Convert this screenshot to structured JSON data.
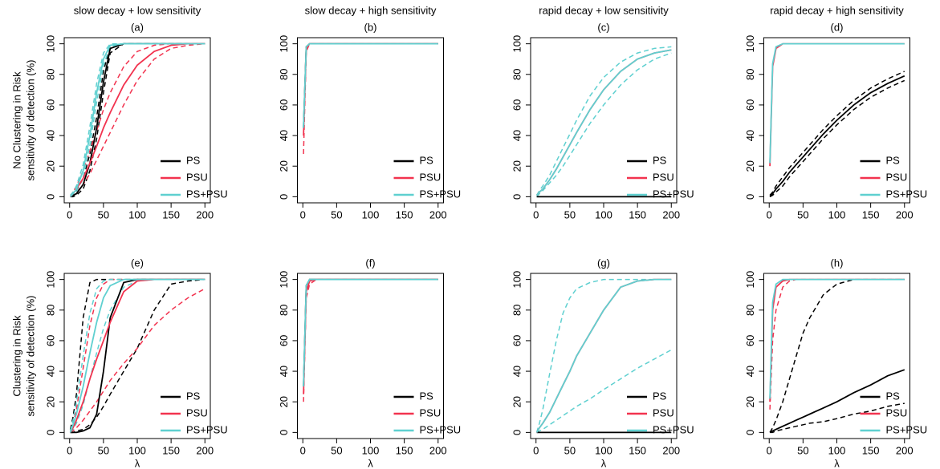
{
  "chart_data": [
    {
      "type": "line",
      "title": "slow decay + low sensitivity",
      "subtitle": "(a)",
      "ylabel": [
        "No Clustering in Risk",
        "sensitivity of detection (%)"
      ],
      "x": [
        1,
        5,
        10,
        20,
        30,
        40,
        50,
        60,
        80,
        100,
        125,
        150,
        175,
        200
      ],
      "xlim": [
        -8,
        208
      ],
      "ylim": [
        -4,
        104
      ],
      "xticks": [
        0,
        50,
        100,
        150,
        200
      ],
      "yticks": [
        0,
        20,
        40,
        60,
        80,
        100
      ],
      "legend": "bottomright",
      "series": [
        {
          "name": "PS",
          "color": "#000000",
          "values": [
            0,
            1,
            2,
            8,
            22,
            45,
            75,
            97,
            100,
            100,
            100,
            100,
            100,
            100
          ],
          "lower": [
            0,
            0,
            1,
            5,
            17,
            38,
            68,
            94,
            100,
            100,
            100,
            100,
            100,
            100
          ],
          "upper": [
            0,
            2,
            4,
            12,
            28,
            52,
            82,
            99,
            100,
            100,
            100,
            100,
            100,
            100
          ]
        },
        {
          "name": "PSU",
          "color": "#f2334f",
          "values": [
            0,
            2,
            5,
            12,
            22,
            33,
            45,
            55,
            73,
            86,
            95,
            99,
            100,
            100
          ],
          "lower": [
            0,
            1,
            3,
            8,
            15,
            24,
            33,
            42,
            60,
            76,
            90,
            97,
            99,
            100
          ],
          "upper": [
            0,
            3,
            7,
            17,
            30,
            43,
            57,
            68,
            85,
            95,
            99,
            100,
            100,
            100
          ]
        },
        {
          "name": "PS+PSU",
          "color": "#5fd0d0",
          "values": [
            0,
            2,
            5,
            17,
            40,
            68,
            90,
            99,
            100,
            100,
            100,
            100,
            100,
            100
          ],
          "lower": [
            0,
            1,
            3,
            13,
            34,
            62,
            86,
            98,
            100,
            100,
            100,
            100,
            100,
            100
          ],
          "upper": [
            1,
            3,
            7,
            21,
            46,
            74,
            94,
            100,
            100,
            100,
            100,
            100,
            100,
            100
          ]
        }
      ]
    },
    {
      "type": "line",
      "title": "slow decay + high sensitivity",
      "subtitle": "(b)",
      "x": [
        1,
        5,
        10,
        20,
        30,
        40,
        50,
        60,
        80,
        100,
        125,
        150,
        175,
        200
      ],
      "xlim": [
        -8,
        208
      ],
      "ylim": [
        -4,
        104
      ],
      "xticks": [
        0,
        50,
        100,
        150,
        200
      ],
      "yticks": [
        0,
        20,
        40,
        60,
        80,
        100
      ],
      "legend": "bottomright",
      "series": [
        {
          "name": "PS",
          "color": "#000000",
          "values": [
            45,
            98,
            100,
            100,
            100,
            100,
            100,
            100,
            100,
            100,
            100,
            100,
            100,
            100
          ]
        },
        {
          "name": "PSU",
          "color": "#f2334f",
          "values": [
            40,
            97,
            100,
            100,
            100,
            100,
            100,
            100,
            100,
            100,
            100,
            100,
            100,
            100
          ],
          "lower": [
            28,
            95,
            100,
            100,
            100,
            100,
            100,
            100,
            100,
            100,
            100,
            100,
            100,
            100
          ]
        },
        {
          "name": "PS+PSU",
          "color": "#5fd0d0",
          "values": [
            45,
            98,
            100,
            100,
            100,
            100,
            100,
            100,
            100,
            100,
            100,
            100,
            100,
            100
          ]
        }
      ]
    },
    {
      "type": "line",
      "title": "rapid decay + low sensitivity",
      "subtitle": "(c)",
      "x": [
        1,
        5,
        10,
        20,
        30,
        40,
        50,
        60,
        80,
        100,
        125,
        150,
        175,
        200
      ],
      "xlim": [
        -8,
        208
      ],
      "ylim": [
        -4,
        104
      ],
      "xticks": [
        0,
        50,
        100,
        150,
        200
      ],
      "yticks": [
        0,
        20,
        40,
        60,
        80,
        100
      ],
      "legend": "bottomright",
      "series": [
        {
          "name": "PS",
          "color": "#000000",
          "values": [
            0,
            0,
            0,
            0,
            0,
            0,
            0,
            0,
            0,
            0,
            0,
            0,
            0,
            0
          ]
        },
        {
          "name": "PSU",
          "color": "#f2334f",
          "values": [
            1,
            3,
            5,
            11,
            18,
            26,
            34,
            42,
            57,
            70,
            82,
            90,
            94,
            96
          ]
        },
        {
          "name": "PS+PSU",
          "color": "#5fd0d0",
          "values": [
            1,
            3,
            5,
            11,
            18,
            26,
            34,
            42,
            57,
            70,
            82,
            90,
            94,
            96
          ],
          "lower": [
            0,
            2,
            4,
            9,
            14,
            20,
            27,
            34,
            48,
            60,
            73,
            83,
            90,
            94
          ],
          "upper": [
            1,
            4,
            7,
            14,
            23,
            32,
            41,
            50,
            66,
            78,
            88,
            94,
            97,
            98
          ]
        }
      ]
    },
    {
      "type": "line",
      "title": "rapid decay + high sensitivity",
      "subtitle": "(d)",
      "x": [
        1,
        5,
        10,
        20,
        30,
        40,
        50,
        60,
        80,
        100,
        125,
        150,
        175,
        200
      ],
      "xlim": [
        -8,
        208
      ],
      "ylim": [
        -4,
        104
      ],
      "xticks": [
        0,
        50,
        100,
        150,
        200
      ],
      "yticks": [
        0,
        20,
        40,
        60,
        80,
        100
      ],
      "legend": "bottomright",
      "series": [
        {
          "name": "PS",
          "color": "#000000",
          "values": [
            0,
            2,
            5,
            10,
            16,
            21,
            26,
            31,
            41,
            50,
            60,
            68,
            74,
            79
          ],
          "lower": [
            0,
            1,
            3,
            7,
            13,
            18,
            23,
            28,
            38,
            47,
            57,
            65,
            71,
            76
          ],
          "upper": [
            1,
            3,
            7,
            13,
            19,
            24,
            29,
            34,
            44,
            53,
            63,
            71,
            77,
            82
          ]
        },
        {
          "name": "PSU",
          "color": "#f2334f",
          "values": [
            20,
            85,
            97,
            100,
            100,
            100,
            100,
            100,
            100,
            100,
            100,
            100,
            100,
            100
          ]
        },
        {
          "name": "PS+PSU",
          "color": "#5fd0d0",
          "values": [
            22,
            87,
            98,
            100,
            100,
            100,
            100,
            100,
            100,
            100,
            100,
            100,
            100,
            100
          ]
        }
      ]
    },
    {
      "type": "line",
      "subtitle": "(e)",
      "ylabel": [
        "Clustering in Risk",
        "sensitivity of detection (%)"
      ],
      "xlabel": "λ",
      "x": [
        1,
        5,
        10,
        20,
        30,
        40,
        50,
        60,
        80,
        100,
        125,
        150,
        175,
        200
      ],
      "xlim": [
        -8,
        208
      ],
      "ylim": [
        -4,
        104
      ],
      "xticks": [
        0,
        50,
        100,
        150,
        200
      ],
      "yticks": [
        0,
        20,
        40,
        60,
        80,
        100
      ],
      "legend": "bottomright",
      "series": [
        {
          "name": "PS",
          "color": "#000000",
          "values": [
            0,
            0,
            0,
            1,
            3,
            12,
            40,
            75,
            98,
            100,
            100,
            100,
            100,
            100
          ],
          "lower": [
            0,
            0,
            1,
            2,
            5,
            10,
            17,
            25,
            40,
            55,
            80,
            97,
            99,
            100
          ],
          "upper": [
            2,
            10,
            25,
            75,
            98,
            100,
            100,
            100,
            100,
            100,
            100,
            100,
            100,
            100
          ]
        },
        {
          "name": "PSU",
          "color": "#f2334f",
          "values": [
            0,
            3,
            8,
            20,
            35,
            48,
            60,
            72,
            92,
            99,
            100,
            100,
            100,
            100
          ],
          "lower": [
            0,
            1,
            3,
            8,
            14,
            20,
            27,
            34,
            45,
            55,
            70,
            80,
            88,
            94
          ],
          "upper": [
            0,
            5,
            15,
            42,
            70,
            88,
            97,
            100,
            100,
            100,
            100,
            100,
            100,
            100
          ]
        },
        {
          "name": "PS+PSU",
          "color": "#5fd0d0",
          "values": [
            0,
            5,
            12,
            30,
            52,
            72,
            88,
            96,
            100,
            100,
            100,
            100,
            100,
            100
          ],
          "lower": [
            0,
            2,
            6,
            18,
            35,
            52,
            68,
            80,
            95,
            99,
            100,
            100,
            100,
            100
          ],
          "upper": [
            1,
            8,
            20,
            50,
            78,
            94,
            99,
            100,
            100,
            100,
            100,
            100,
            100,
            100
          ]
        }
      ]
    },
    {
      "type": "line",
      "subtitle": "(f)",
      "xlabel": "λ",
      "x": [
        1,
        5,
        10,
        20,
        30,
        40,
        50,
        60,
        80,
        100,
        125,
        150,
        175,
        200
      ],
      "xlim": [
        -8,
        208
      ],
      "ylim": [
        -4,
        104
      ],
      "xticks": [
        0,
        50,
        100,
        150,
        200
      ],
      "yticks": [
        0,
        20,
        40,
        60,
        80,
        100
      ],
      "legend": "bottomright",
      "series": [
        {
          "name": "PS",
          "color": "#000000",
          "values": [
            30,
            96,
            100,
            100,
            100,
            100,
            100,
            100,
            100,
            100,
            100,
            100,
            100,
            100
          ]
        },
        {
          "name": "PSU",
          "color": "#f2334f",
          "values": [
            25,
            92,
            99,
            100,
            100,
            100,
            100,
            100,
            100,
            100,
            100,
            100,
            100,
            100
          ],
          "lower": [
            20,
            88,
            97,
            100,
            100,
            100,
            100,
            100,
            100,
            100,
            100,
            100,
            100,
            100
          ]
        },
        {
          "name": "PS+PSU",
          "color": "#5fd0d0",
          "values": [
            30,
            96,
            100,
            100,
            100,
            100,
            100,
            100,
            100,
            100,
            100,
            100,
            100,
            100
          ]
        }
      ]
    },
    {
      "type": "line",
      "subtitle": "(g)",
      "xlabel": "λ",
      "x": [
        1,
        5,
        10,
        20,
        30,
        40,
        50,
        60,
        80,
        100,
        125,
        150,
        175,
        200
      ],
      "xlim": [
        -8,
        208
      ],
      "ylim": [
        -4,
        104
      ],
      "xticks": [
        0,
        50,
        100,
        150,
        200
      ],
      "yticks": [
        0,
        20,
        40,
        60,
        80,
        100
      ],
      "legend": "bottomright",
      "series": [
        {
          "name": "PS",
          "color": "#000000",
          "values": [
            0,
            0,
            0,
            0,
            0,
            0,
            0,
            0,
            0,
            0,
            0,
            0,
            0,
            0
          ]
        },
        {
          "name": "PSU",
          "color": "#f2334f",
          "values": [
            0,
            3,
            6,
            13,
            22,
            31,
            40,
            50,
            65,
            80,
            95,
            99,
            100,
            100
          ]
        },
        {
          "name": "PS+PSU",
          "color": "#5fd0d0",
          "values": [
            0,
            3,
            6,
            13,
            22,
            31,
            40,
            50,
            65,
            80,
            95,
            99,
            100,
            100
          ],
          "lower": [
            0,
            1,
            2,
            5,
            8,
            11,
            14,
            17,
            22,
            28,
            35,
            42,
            48,
            54
          ],
          "upper": [
            0,
            6,
            15,
            38,
            60,
            78,
            88,
            94,
            98,
            100,
            100,
            100,
            100,
            100
          ]
        }
      ]
    },
    {
      "type": "line",
      "subtitle": "(h)",
      "xlabel": "λ",
      "x": [
        1,
        5,
        10,
        20,
        30,
        40,
        50,
        60,
        80,
        100,
        125,
        150,
        175,
        200
      ],
      "xlim": [
        -8,
        208
      ],
      "ylim": [
        -4,
        104
      ],
      "xticks": [
        0,
        50,
        100,
        150,
        200
      ],
      "yticks": [
        0,
        20,
        40,
        60,
        80,
        100
      ],
      "legend": "bottomright",
      "series": [
        {
          "name": "PS",
          "color": "#000000",
          "values": [
            0,
            1,
            2,
            4,
            6,
            8,
            10,
            12,
            16,
            20,
            26,
            31,
            37,
            41
          ],
          "lower": [
            0,
            0,
            1,
            2,
            3,
            4,
            5,
            6,
            7,
            9,
            12,
            14,
            17,
            19
          ],
          "upper": [
            0,
            3,
            8,
            20,
            35,
            50,
            65,
            75,
            90,
            97,
            100,
            100,
            100,
            100
          ]
        },
        {
          "name": "PSU",
          "color": "#f2334f",
          "values": [
            20,
            80,
            95,
            99,
            100,
            100,
            100,
            100,
            100,
            100,
            100,
            100,
            100,
            100
          ],
          "lower": [
            15,
            60,
            80,
            95,
            99,
            100,
            100,
            100,
            100,
            100,
            100,
            100,
            100,
            100
          ]
        },
        {
          "name": "PS+PSU",
          "color": "#5fd0d0",
          "values": [
            22,
            85,
            97,
            100,
            100,
            100,
            100,
            100,
            100,
            100,
            100,
            100,
            100,
            100
          ]
        }
      ]
    }
  ]
}
